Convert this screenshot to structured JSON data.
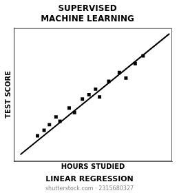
{
  "chart_data": {
    "type": "scatter",
    "title": "SUPERVISED\nMACHINE LEARNING",
    "xlabel": "HOURS STUDIED",
    "ylabel": "TEST SCORE",
    "annotations": [
      "LINEAR REGRESSION",
      "shutterstock.com · 2315680327"
    ],
    "series": [
      {
        "type": "scatter",
        "marker": "square",
        "color": "#000000",
        "x": [
          0.08,
          0.13,
          0.17,
          0.22,
          0.25,
          0.32,
          0.36,
          0.42,
          0.47,
          0.52,
          0.55,
          0.62,
          0.7,
          0.75,
          0.82,
          0.88
        ],
        "values": [
          0.13,
          0.18,
          0.23,
          0.3,
          0.26,
          0.38,
          0.34,
          0.46,
          0.5,
          0.55,
          0.48,
          0.62,
          0.7,
          0.65,
          0.78,
          0.85
        ]
      },
      {
        "type": "line",
        "line_style": "solid",
        "color": "#000000",
        "x": [
          -0.05,
          1.08
        ],
        "values": [
          -0.04,
          1.05
        ]
      }
    ],
    "xlim": [
      -0.1,
      1.1
    ],
    "ylim": [
      -0.1,
      1.1
    ],
    "tick_labels": false,
    "grid": false,
    "legend": false
  }
}
